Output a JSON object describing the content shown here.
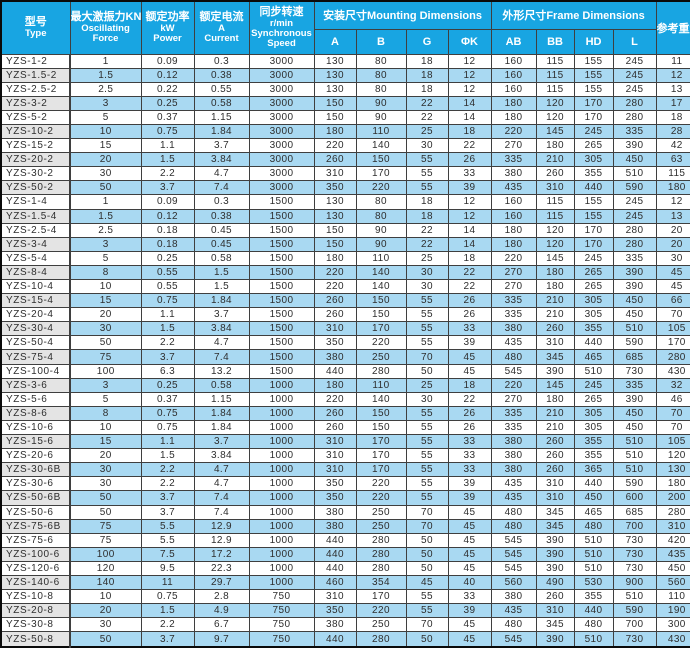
{
  "colors": {
    "header_bg": "#18a5e2",
    "row_alt_bg": "#a9d9f2",
    "model_alt_bg": "#e4e4e4",
    "grid_border": "#3f3f3f",
    "data_text": "#2e2e2e",
    "header_text": "#ffffff"
  },
  "table": {
    "headers": {
      "type_lines": [
        "型号",
        "Type"
      ],
      "force_lines": [
        "最大激振力KN",
        "Oscillating",
        "Force"
      ],
      "power_lines": [
        "额定功率",
        "kW",
        "Power"
      ],
      "current_lines": [
        "额定电流",
        "A",
        "Current"
      ],
      "speed_lines": [
        "同步转速",
        "r/min",
        "Synchronous",
        "Speed"
      ],
      "mounting": "安装尺寸Mounting Dimensions",
      "frame": "外形尺寸Frame Dimensions",
      "weight": "参考重量",
      "mounting_cols": [
        "A",
        "B",
        "G",
        "ΦK"
      ],
      "frame_cols": [
        "AB",
        "BB",
        "HD",
        "L"
      ]
    },
    "rows": [
      [
        "YZS-1-2",
        "1",
        "0.09",
        "0.3",
        "3000",
        "130",
        "80",
        "18",
        "12",
        "160",
        "115",
        "155",
        "245",
        "11"
      ],
      [
        "YZS-1.5-2",
        "1.5",
        "0.12",
        "0.38",
        "3000",
        "130",
        "80",
        "18",
        "12",
        "160",
        "115",
        "155",
        "245",
        "12"
      ],
      [
        "YZS-2.5-2",
        "2.5",
        "0.22",
        "0.55",
        "3000",
        "130",
        "80",
        "18",
        "12",
        "160",
        "115",
        "155",
        "245",
        "13"
      ],
      [
        "YZS-3-2",
        "3",
        "0.25",
        "0.58",
        "3000",
        "150",
        "90",
        "22",
        "14",
        "180",
        "120",
        "170",
        "280",
        "17"
      ],
      [
        "YZS-5-2",
        "5",
        "0.37",
        "1.15",
        "3000",
        "150",
        "90",
        "22",
        "14",
        "180",
        "120",
        "170",
        "280",
        "18"
      ],
      [
        "YZS-10-2",
        "10",
        "0.75",
        "1.84",
        "3000",
        "180",
        "110",
        "25",
        "18",
        "220",
        "145",
        "245",
        "335",
        "28"
      ],
      [
        "YZS-15-2",
        "15",
        "1.1",
        "3.7",
        "3000",
        "220",
        "140",
        "30",
        "22",
        "270",
        "180",
        "265",
        "390",
        "42"
      ],
      [
        "YZS-20-2",
        "20",
        "1.5",
        "3.84",
        "3000",
        "260",
        "150",
        "55",
        "26",
        "335",
        "210",
        "305",
        "450",
        "63"
      ],
      [
        "YZS-30-2",
        "30",
        "2.2",
        "4.7",
        "3000",
        "310",
        "170",
        "55",
        "33",
        "380",
        "260",
        "355",
        "510",
        "115"
      ],
      [
        "YZS-50-2",
        "50",
        "3.7",
        "7.4",
        "3000",
        "350",
        "220",
        "55",
        "39",
        "435",
        "310",
        "440",
        "590",
        "180"
      ],
      [
        "YZS-1-4",
        "1",
        "0.09",
        "0.3",
        "1500",
        "130",
        "80",
        "18",
        "12",
        "160",
        "115",
        "155",
        "245",
        "12"
      ],
      [
        "YZS-1.5-4",
        "1.5",
        "0.12",
        "0.38",
        "1500",
        "130",
        "80",
        "18",
        "12",
        "160",
        "115",
        "155",
        "245",
        "13"
      ],
      [
        "YZS-2.5-4",
        "2.5",
        "0.18",
        "0.45",
        "1500",
        "150",
        "90",
        "22",
        "14",
        "180",
        "120",
        "170",
        "280",
        "20"
      ],
      [
        "YZS-3-4",
        "3",
        "0.18",
        "0.45",
        "1500",
        "150",
        "90",
        "22",
        "14",
        "180",
        "120",
        "170",
        "280",
        "20"
      ],
      [
        "YZS-5-4",
        "5",
        "0.25",
        "0.58",
        "1500",
        "180",
        "110",
        "25",
        "18",
        "220",
        "145",
        "245",
        "335",
        "30"
      ],
      [
        "YZS-8-4",
        "8",
        "0.55",
        "1.5",
        "1500",
        "220",
        "140",
        "30",
        "22",
        "270",
        "180",
        "265",
        "390",
        "45"
      ],
      [
        "YZS-10-4",
        "10",
        "0.55",
        "1.5",
        "1500",
        "220",
        "140",
        "30",
        "22",
        "270",
        "180",
        "265",
        "390",
        "45"
      ],
      [
        "YZS-15-4",
        "15",
        "0.75",
        "1.84",
        "1500",
        "260",
        "150",
        "55",
        "26",
        "335",
        "210",
        "305",
        "450",
        "66"
      ],
      [
        "YZS-20-4",
        "20",
        "1.1",
        "3.7",
        "1500",
        "260",
        "150",
        "55",
        "26",
        "335",
        "210",
        "305",
        "450",
        "70"
      ],
      [
        "YZS-30-4",
        "30",
        "1.5",
        "3.84",
        "1500",
        "310",
        "170",
        "55",
        "33",
        "380",
        "260",
        "355",
        "510",
        "105"
      ],
      [
        "YZS-50-4",
        "50",
        "2.2",
        "4.7",
        "1500",
        "350",
        "220",
        "55",
        "39",
        "435",
        "310",
        "440",
        "590",
        "170"
      ],
      [
        "YZS-75-4",
        "75",
        "3.7",
        "7.4",
        "1500",
        "380",
        "250",
        "70",
        "45",
        "480",
        "345",
        "465",
        "685",
        "280"
      ],
      [
        "YZS-100-4",
        "100",
        "6.3",
        "13.2",
        "1500",
        "440",
        "280",
        "50",
        "45",
        "545",
        "390",
        "510",
        "730",
        "430"
      ],
      [
        "YZS-3-6",
        "3",
        "0.25",
        "0.58",
        "1000",
        "180",
        "110",
        "25",
        "18",
        "220",
        "145",
        "245",
        "335",
        "32"
      ],
      [
        "YZS-5-6",
        "5",
        "0.37",
        "1.15",
        "1000",
        "220",
        "140",
        "30",
        "22",
        "270",
        "180",
        "265",
        "390",
        "46"
      ],
      [
        "YZS-8-6",
        "8",
        "0.75",
        "1.84",
        "1000",
        "260",
        "150",
        "55",
        "26",
        "335",
        "210",
        "305",
        "450",
        "70"
      ],
      [
        "YZS-10-6",
        "10",
        "0.75",
        "1.84",
        "1000",
        "260",
        "150",
        "55",
        "26",
        "335",
        "210",
        "305",
        "450",
        "70"
      ],
      [
        "YZS-15-6",
        "15",
        "1.1",
        "3.7",
        "1000",
        "310",
        "170",
        "55",
        "33",
        "380",
        "260",
        "355",
        "510",
        "105"
      ],
      [
        "YZS-20-6",
        "20",
        "1.5",
        "3.84",
        "1000",
        "310",
        "170",
        "55",
        "33",
        "380",
        "260",
        "355",
        "510",
        "120"
      ],
      [
        "YZS-30-6B",
        "30",
        "2.2",
        "4.7",
        "1000",
        "310",
        "170",
        "55",
        "33",
        "380",
        "260",
        "365",
        "510",
        "130"
      ],
      [
        "YZS-30-6",
        "30",
        "2.2",
        "4.7",
        "1000",
        "350",
        "220",
        "55",
        "39",
        "435",
        "310",
        "440",
        "590",
        "180"
      ],
      [
        "YZS-50-6B",
        "50",
        "3.7",
        "7.4",
        "1000",
        "350",
        "220",
        "55",
        "39",
        "435",
        "310",
        "450",
        "600",
        "200"
      ],
      [
        "YZS-50-6",
        "50",
        "3.7",
        "7.4",
        "1000",
        "380",
        "250",
        "70",
        "45",
        "480",
        "345",
        "465",
        "685",
        "280"
      ],
      [
        "YZS-75-6B",
        "75",
        "5.5",
        "12.9",
        "1000",
        "380",
        "250",
        "70",
        "45",
        "480",
        "345",
        "480",
        "700",
        "310"
      ],
      [
        "YZS-75-6",
        "75",
        "5.5",
        "12.9",
        "1000",
        "440",
        "280",
        "50",
        "45",
        "545",
        "390",
        "510",
        "730",
        "420"
      ],
      [
        "YZS-100-6",
        "100",
        "7.5",
        "17.2",
        "1000",
        "440",
        "280",
        "50",
        "45",
        "545",
        "390",
        "510",
        "730",
        "435"
      ],
      [
        "YZS-120-6",
        "120",
        "9.5",
        "22.3",
        "1000",
        "440",
        "280",
        "50",
        "45",
        "545",
        "390",
        "510",
        "730",
        "450"
      ],
      [
        "YZS-140-6",
        "140",
        "11",
        "29.7",
        "1000",
        "460",
        "354",
        "45",
        "40",
        "560",
        "490",
        "530",
        "900",
        "560"
      ],
      [
        "YZS-10-8",
        "10",
        "0.75",
        "2.8",
        "750",
        "310",
        "170",
        "55",
        "33",
        "380",
        "260",
        "355",
        "510",
        "110"
      ],
      [
        "YZS-20-8",
        "20",
        "1.5",
        "4.9",
        "750",
        "350",
        "220",
        "55",
        "39",
        "435",
        "310",
        "440",
        "590",
        "190"
      ],
      [
        "YZS-30-8",
        "30",
        "2.2",
        "6.7",
        "750",
        "380",
        "250",
        "70",
        "45",
        "480",
        "345",
        "480",
        "700",
        "300"
      ],
      [
        "YZS-50-8",
        "50",
        "3.7",
        "9.7",
        "750",
        "440",
        "280",
        "50",
        "45",
        "545",
        "390",
        "510",
        "730",
        "430"
      ]
    ]
  }
}
